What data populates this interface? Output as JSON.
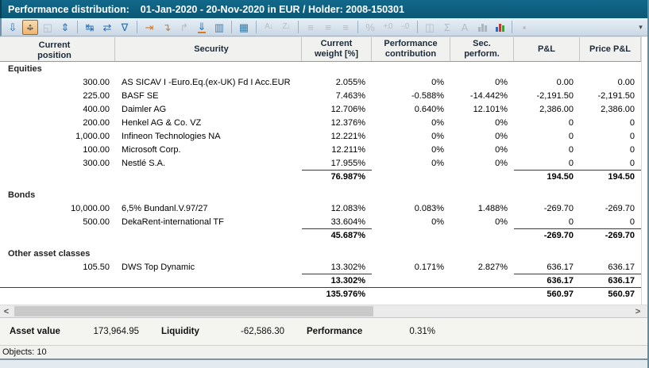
{
  "window": {
    "title_label": "Performance distribution:",
    "title_value": "01-Jan-2020 - 20-Nov-2020 in EUR / Holder: 2008-150301"
  },
  "toolbar": {
    "overflow_glyph": "▾",
    "items": [
      {
        "type": "glyph",
        "name": "export-layout-icon",
        "glyph": "⇩",
        "state": "normal",
        "cls": ""
      },
      {
        "type": "fit",
        "name": "fit-view-icon",
        "state": "active",
        "cls": "active"
      },
      {
        "type": "glyph",
        "name": "copy-region-icon",
        "glyph": "◱",
        "state": "disabled",
        "cls": "disabled"
      },
      {
        "type": "glyph",
        "name": "expand-rows-icon",
        "glyph": "⇕",
        "state": "normal",
        "cls": ""
      },
      {
        "type": "sep"
      },
      {
        "type": "glyph",
        "name": "column-width-icon",
        "glyph": "↹",
        "state": "normal",
        "cls": ""
      },
      {
        "type": "glyph",
        "name": "refresh-icon",
        "glyph": "⇄",
        "state": "normal",
        "cls": ""
      },
      {
        "type": "glyph",
        "name": "filter-icon",
        "glyph": "∇",
        "state": "normal",
        "cls": ""
      },
      {
        "type": "sep"
      },
      {
        "type": "glyph",
        "name": "shift-right-icon",
        "glyph": "⇥",
        "state": "normal",
        "cls": "orange"
      },
      {
        "type": "glyph",
        "name": "shift-down-icon",
        "glyph": "↴",
        "state": "normal",
        "cls": "orange"
      },
      {
        "type": "glyph",
        "name": "return-icon",
        "glyph": "↱",
        "state": "disabled",
        "cls": "disabled"
      },
      {
        "type": "glyph",
        "name": "jump-bottom-icon",
        "glyph": "⇓",
        "state": "normal",
        "cls": "underlined"
      },
      {
        "type": "glyph",
        "name": "histogram-marker-icon",
        "glyph": "▥",
        "state": "normal",
        "cls": "steel"
      },
      {
        "type": "sep"
      },
      {
        "type": "glyph",
        "name": "column-stripes-icon",
        "glyph": "▦",
        "state": "normal",
        "cls": "teal"
      },
      {
        "type": "sep"
      },
      {
        "type": "glyph",
        "name": "sort-az-icon",
        "glyph": "A↓",
        "state": "disabled",
        "cls": "disabled small"
      },
      {
        "type": "glyph",
        "name": "sort-za-icon",
        "glyph": "Z↓",
        "state": "disabled",
        "cls": "disabled small"
      },
      {
        "type": "sep"
      },
      {
        "type": "glyph",
        "name": "align-left-icon",
        "glyph": "≡",
        "state": "disabled",
        "cls": "disabled"
      },
      {
        "type": "glyph",
        "name": "align-center-icon",
        "glyph": "≡",
        "state": "disabled",
        "cls": "disabled"
      },
      {
        "type": "glyph",
        "name": "align-right-icon",
        "glyph": "≡",
        "state": "disabled",
        "cls": "disabled"
      },
      {
        "type": "sep"
      },
      {
        "type": "glyph",
        "name": "percent-format-icon",
        "glyph": "%",
        "state": "disabled",
        "cls": "disabled"
      },
      {
        "type": "glyph",
        "name": "add-decimal-icon",
        "glyph": "+.0",
        "state": "disabled",
        "cls": "disabled small"
      },
      {
        "type": "glyph",
        "name": "remove-decimal-icon",
        "glyph": "-.0",
        "state": "disabled",
        "cls": "disabled small"
      },
      {
        "type": "sep"
      },
      {
        "type": "glyph",
        "name": "columns-icon",
        "glyph": "◫",
        "state": "disabled",
        "cls": "disabled"
      },
      {
        "type": "glyph",
        "name": "sum-icon",
        "glyph": "Σ",
        "state": "disabled",
        "cls": "disabled"
      },
      {
        "type": "glyph",
        "name": "font-icon",
        "glyph": "A",
        "state": "disabled",
        "cls": "disabled"
      },
      {
        "type": "bars",
        "name": "chart-gray-icon",
        "state": "disabled",
        "cls": "disabled",
        "colors": [
          "#9aa6b2",
          "#9aa6b2",
          "#9aa6b2"
        ]
      },
      {
        "type": "bars",
        "name": "chart-icon",
        "state": "normal",
        "cls": "",
        "colors": [
          "#2a6db0",
          "#c23b3b",
          "#3f9e3f"
        ]
      },
      {
        "type": "sep"
      },
      {
        "type": "glyph",
        "name": "stop-icon",
        "glyph": "▪",
        "state": "disabled",
        "cls": "disabled"
      }
    ]
  },
  "table": {
    "columns": [
      {
        "id": "pos",
        "line1": "Current",
        "line2": "position"
      },
      {
        "id": "sec",
        "line1": "Security",
        "line2": ""
      },
      {
        "id": "weight",
        "line1": "Current",
        "line2": "weight [%]"
      },
      {
        "id": "contrib",
        "line1": "Performance",
        "line2": "contribution"
      },
      {
        "id": "secperf",
        "line1": "Sec.",
        "line2": "perform."
      },
      {
        "id": "pl",
        "line1": "P&L",
        "line2": ""
      },
      {
        "id": "pricepl",
        "line1": "Price P&L",
        "line2": ""
      }
    ],
    "rows": [
      {
        "type": "group",
        "label": "Equities"
      },
      {
        "type": "item",
        "pos": "300.00",
        "sec": "AS SICAV I -Euro.Eq.(ex-UK) Fd I Acc.EUR",
        "weight": "2.055%",
        "contrib": "0%",
        "secperf": "0%",
        "pl": "0.00",
        "pricepl": "0.00"
      },
      {
        "type": "item",
        "pos": "225.00",
        "sec": "BASF SE",
        "weight": "7.463%",
        "contrib": "-0.588%",
        "secperf": "-14.442%",
        "pl": "-2,191.50",
        "pricepl": "-2,191.50"
      },
      {
        "type": "item",
        "pos": "400.00",
        "sec": "Daimler AG",
        "weight": "12.706%",
        "contrib": "0.640%",
        "secperf": "12.101%",
        "pl": "2,386.00",
        "pricepl": "2,386.00"
      },
      {
        "type": "item",
        "pos": "200.00",
        "sec": "Henkel AG & Co. VZ",
        "weight": "12.376%",
        "contrib": "0%",
        "secperf": "0%",
        "pl": "0",
        "pricepl": "0"
      },
      {
        "type": "item",
        "pos": "1,000.00",
        "sec": "Infineon Technologies NA",
        "weight": "12.221%",
        "contrib": "0%",
        "secperf": "0%",
        "pl": "0",
        "pricepl": "0"
      },
      {
        "type": "item",
        "pos": "100.00",
        "sec": "Microsoft Corp.",
        "weight": "12.211%",
        "contrib": "0%",
        "secperf": "0%",
        "pl": "0",
        "pricepl": "0"
      },
      {
        "type": "item",
        "pos": "300.00",
        "sec": "Nestlé S.A.",
        "weight": "17.955%",
        "contrib": "0%",
        "secperf": "0%",
        "pl": "0",
        "pricepl": "0"
      },
      {
        "type": "subtotal",
        "pos": "",
        "sec": "",
        "weight": "76.987%",
        "contrib": "",
        "secperf": "",
        "pl": "194.50",
        "pricepl": "194.50"
      },
      {
        "type": "spacer"
      },
      {
        "type": "group",
        "label": "Bonds"
      },
      {
        "type": "item",
        "pos": "10,000.00",
        "sec": "6,5% Bundanl.V.97/27",
        "weight": "12.083%",
        "contrib": "0.083%",
        "secperf": "1.488%",
        "pl": "-269.70",
        "pricepl": "-269.70"
      },
      {
        "type": "item",
        "pos": "500.00",
        "sec": "DekaRent-international TF",
        "weight": "33.604%",
        "contrib": "0%",
        "secperf": "0%",
        "pl": "0",
        "pricepl": "0"
      },
      {
        "type": "subtotal",
        "pos": "",
        "sec": "",
        "weight": "45.687%",
        "contrib": "",
        "secperf": "",
        "pl": "-269.70",
        "pricepl": "-269.70"
      },
      {
        "type": "spacer"
      },
      {
        "type": "group",
        "label": "Other asset classes"
      },
      {
        "type": "item",
        "pos": "105.50",
        "sec": "DWS Top Dynamic",
        "weight": "13.302%",
        "contrib": "0.171%",
        "secperf": "2.827%",
        "pl": "636.17",
        "pricepl": "636.17"
      },
      {
        "type": "subtotal",
        "pos": "",
        "sec": "",
        "weight": "13.302%",
        "contrib": "",
        "secperf": "",
        "pl": "636.17",
        "pricepl": "636.17"
      },
      {
        "type": "total",
        "pos": "",
        "sec": "",
        "weight": "135.976%",
        "contrib": "",
        "secperf": "",
        "pl": "560.97",
        "pricepl": "560.97"
      }
    ]
  },
  "scrollbar": {
    "left_arrow": "<",
    "right_arrow": ">"
  },
  "status": {
    "asset_label": "Asset value",
    "asset_value": "173,964.95",
    "liquidity_label": "Liquidity",
    "liquidity_value": "-62,586.30",
    "perf_label": "Performance",
    "perf_value": "0.31%"
  },
  "objects_label": "Objects: 10"
}
